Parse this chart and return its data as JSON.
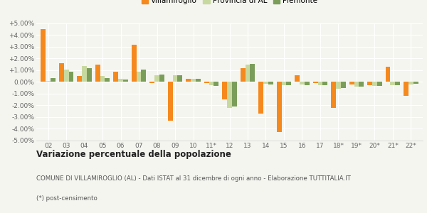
{
  "categories": [
    "02",
    "03",
    "04",
    "05",
    "06",
    "07",
    "08",
    "09",
    "10",
    "11*",
    "12",
    "13",
    "14",
    "15",
    "16",
    "17",
    "18*",
    "19*",
    "20*",
    "21*",
    "22*"
  ],
  "villamiroglio": [
    4.5,
    1.6,
    0.5,
    1.5,
    0.85,
    3.2,
    -0.1,
    -3.3,
    0.3,
    -0.1,
    -1.5,
    1.2,
    -2.7,
    -4.3,
    0.6,
    -0.1,
    -2.2,
    -0.2,
    -0.3,
    1.3,
    -1.2
  ],
  "provincia_al": [
    0.1,
    1.05,
    1.35,
    0.5,
    0.25,
    0.85,
    0.6,
    0.55,
    0.25,
    -0.25,
    -2.2,
    1.5,
    -0.15,
    -0.3,
    -0.2,
    -0.3,
    -0.55,
    -0.4,
    -0.35,
    -0.3,
    -0.2
  ],
  "piemonte": [
    0.35,
    0.9,
    1.2,
    0.35,
    0.2,
    1.05,
    0.65,
    0.6,
    0.25,
    -0.35,
    -2.1,
    1.55,
    -0.2,
    -0.3,
    -0.25,
    -0.3,
    -0.5,
    -0.4,
    -0.35,
    -0.3,
    -0.15
  ],
  "color_villa": "#f5891d",
  "color_prov": "#c8d9a0",
  "color_piem": "#7a9e5a",
  "ylim": [
    -5.0,
    5.0
  ],
  "yticks": [
    -5.0,
    -4.0,
    -3.0,
    -2.0,
    -1.0,
    0.0,
    1.0,
    2.0,
    3.0,
    4.0,
    5.0
  ],
  "title_bold": "Variazione percentuale della popolazione",
  "subtitle": "COMUNE DI VILLAMIROGLIO (AL) - Dati ISTAT al 31 dicembre di ogni anno - Elaborazione TUTTITALIA.IT",
  "footnote": "(*) post-censimento",
  "legend_labels": [
    "Villamiroglio",
    "Provincia di AL",
    "Piemonte"
  ],
  "bg_color": "#f5f5f0"
}
